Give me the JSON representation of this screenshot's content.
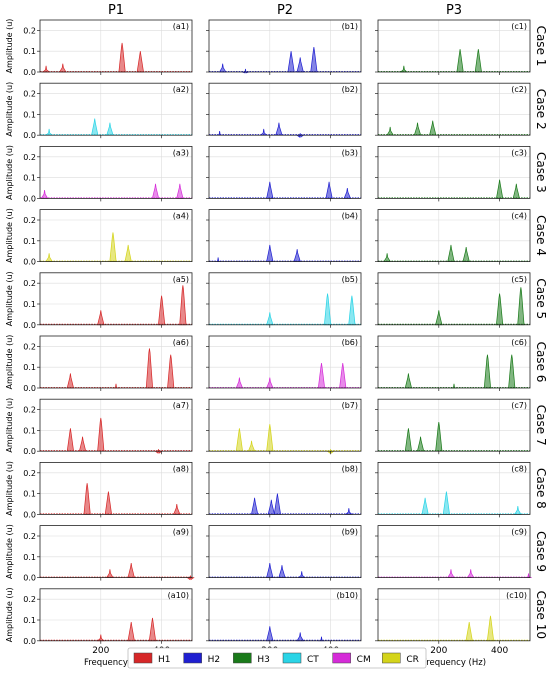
{
  "chart_data": {
    "type": "line",
    "columns": [
      "P1",
      "P2",
      "P3"
    ],
    "rows": [
      "Case 1",
      "Case 2",
      "Case 3",
      "Case 4",
      "Case 5",
      "Case 6",
      "Case 7",
      "Case 8",
      "Case 9",
      "Case 10"
    ],
    "ylabel": "Amplitude (u)",
    "xlabel": "Frequency (Hz)",
    "xlim": [
      0,
      500
    ],
    "ylim": [
      0,
      0.25
    ],
    "xticks": [
      200,
      400
    ],
    "yticks": [
      0.0,
      0.1,
      0.2
    ],
    "ytick_labels": [
      "0.0",
      "0.1",
      "0.2"
    ],
    "grid": true,
    "legend_position": "bottom",
    "legend": [
      {
        "label": "H1",
        "color": "#d62728"
      },
      {
        "label": "H2",
        "color": "#1f1fd0"
      },
      {
        "label": "H3",
        "color": "#1a7a1a"
      },
      {
        "label": "CT",
        "color": "#2ad4e6"
      },
      {
        "label": "CM",
        "color": "#d52bd8"
      },
      {
        "label": "CR",
        "color": "#d4d41a"
      }
    ],
    "panels": [
      [
        {
          "tag": "(a1)",
          "series": "H1",
          "peaks": [
            [
              20,
              0.03
            ],
            [
              75,
              0.04
            ],
            [
              270,
              0.14
            ],
            [
              330,
              0.1
            ]
          ]
        },
        {
          "tag": "(b1)",
          "series": "H2",
          "peaks": [
            [
              45,
              0.04
            ],
            [
              120,
              0.015
            ],
            [
              270,
              0.1
            ],
            [
              300,
              0.07
            ],
            [
              345,
              0.12
            ]
          ]
        },
        {
          "tag": "(c1)",
          "series": "H3",
          "peaks": [
            [
              85,
              0.03
            ],
            [
              270,
              0.11
            ],
            [
              330,
              0.11
            ]
          ]
        }
      ],
      [
        {
          "tag": "(a2)",
          "series": "CT",
          "peaks": [
            [
              30,
              0.03
            ],
            [
              180,
              0.08
            ],
            [
              230,
              0.06
            ]
          ]
        },
        {
          "tag": "(b2)",
          "series": "H2",
          "peaks": [
            [
              35,
              0.02
            ],
            [
              180,
              0.03
            ],
            [
              230,
              0.06
            ],
            [
              300,
              0.01
            ]
          ]
        },
        {
          "tag": "(c2)",
          "series": "H3",
          "peaks": [
            [
              40,
              0.04
            ],
            [
              130,
              0.06
            ],
            [
              180,
              0.07
            ]
          ]
        }
      ],
      [
        {
          "tag": "(a3)",
          "series": "CM",
          "peaks": [
            [
              15,
              0.04
            ],
            [
              380,
              0.07
            ],
            [
              460,
              0.07
            ]
          ]
        },
        {
          "tag": "(b3)",
          "series": "H2",
          "peaks": [
            [
              200,
              0.08
            ],
            [
              395,
              0.08
            ],
            [
              455,
              0.05
            ]
          ]
        },
        {
          "tag": "(c3)",
          "series": "H3",
          "peaks": [
            [
              400,
              0.09
            ],
            [
              455,
              0.07
            ]
          ]
        }
      ],
      [
        {
          "tag": "(a4)",
          "series": "CR",
          "peaks": [
            [
              30,
              0.04
            ],
            [
              240,
              0.14
            ],
            [
              290,
              0.08
            ]
          ]
        },
        {
          "tag": "(b4)",
          "series": "H2",
          "peaks": [
            [
              30,
              0.02
            ],
            [
              200,
              0.08
            ],
            [
              290,
              0.06
            ]
          ]
        },
        {
          "tag": "(c4)",
          "series": "H3",
          "peaks": [
            [
              30,
              0.04
            ],
            [
              240,
              0.08
            ],
            [
              290,
              0.07
            ]
          ]
        }
      ],
      [
        {
          "tag": "(a5)",
          "series": "H1",
          "peaks": [
            [
              200,
              0.07
            ],
            [
              400,
              0.14
            ],
            [
              470,
              0.19
            ]
          ]
        },
        {
          "tag": "(b5)",
          "series": "CT",
          "peaks": [
            [
              200,
              0.06
            ],
            [
              390,
              0.15
            ],
            [
              470,
              0.14
            ]
          ]
        },
        {
          "tag": "(c5)",
          "series": "H3",
          "peaks": [
            [
              200,
              0.07
            ],
            [
              400,
              0.15
            ],
            [
              470,
              0.18
            ]
          ]
        }
      ],
      [
        {
          "tag": "(a6)",
          "series": "H1",
          "peaks": [
            [
              100,
              0.07
            ],
            [
              250,
              0.02
            ],
            [
              360,
              0.19
            ],
            [
              430,
              0.16
            ]
          ]
        },
        {
          "tag": "(b6)",
          "series": "CM",
          "peaks": [
            [
              100,
              0.05
            ],
            [
              200,
              0.05
            ],
            [
              370,
              0.12
            ],
            [
              440,
              0.12
            ]
          ]
        },
        {
          "tag": "(c6)",
          "series": "H3",
          "peaks": [
            [
              100,
              0.07
            ],
            [
              250,
              0.02
            ],
            [
              360,
              0.16
            ],
            [
              440,
              0.16
            ]
          ]
        }
      ],
      [
        {
          "tag": "(a7)",
          "series": "H1",
          "peaks": [
            [
              100,
              0.11
            ],
            [
              140,
              0.07
            ],
            [
              200,
              0.16
            ],
            [
              390,
              0.01
            ]
          ]
        },
        {
          "tag": "(b7)",
          "series": "CR",
          "peaks": [
            [
              100,
              0.11
            ],
            [
              140,
              0.05
            ],
            [
              200,
              0.13
            ],
            [
              400,
              0.01
            ]
          ]
        },
        {
          "tag": "(c7)",
          "series": "H3",
          "peaks": [
            [
              100,
              0.11
            ],
            [
              140,
              0.07
            ],
            [
              200,
              0.14
            ]
          ]
        }
      ],
      [
        {
          "tag": "(a8)",
          "series": "H1",
          "peaks": [
            [
              155,
              0.15
            ],
            [
              225,
              0.11
            ],
            [
              450,
              0.05
            ]
          ]
        },
        {
          "tag": "(b8)",
          "series": "H2",
          "peaks": [
            [
              150,
              0.08
            ],
            [
              205,
              0.07
            ],
            [
              225,
              0.1
            ],
            [
              460,
              0.03
            ]
          ]
        },
        {
          "tag": "(c8)",
          "series": "CT",
          "peaks": [
            [
              155,
              0.08
            ],
            [
              225,
              0.11
            ],
            [
              460,
              0.04
            ]
          ]
        }
      ],
      [
        {
          "tag": "(a9)",
          "series": "H1",
          "peaks": [
            [
              230,
              0.04
            ],
            [
              300,
              0.07
            ],
            [
              495,
              0.01
            ]
          ]
        },
        {
          "tag": "(b9)",
          "series": "H2",
          "peaks": [
            [
              200,
              0.07
            ],
            [
              240,
              0.06
            ],
            [
              305,
              0.03
            ]
          ]
        },
        {
          "tag": "(c9)",
          "series": "CM",
          "peaks": [
            [
              240,
              0.04
            ],
            [
              305,
              0.04
            ],
            [
              495,
              0.02
            ]
          ]
        }
      ],
      [
        {
          "tag": "(a10)",
          "series": "H1",
          "peaks": [
            [
              200,
              0.03
            ],
            [
              300,
              0.09
            ],
            [
              370,
              0.11
            ]
          ]
        },
        {
          "tag": "(b10)",
          "series": "H2",
          "peaks": [
            [
              200,
              0.07
            ],
            [
              300,
              0.04
            ],
            [
              370,
              0.02
            ]
          ]
        },
        {
          "tag": "(c10)",
          "series": "CR",
          "peaks": [
            [
              300,
              0.09
            ],
            [
              370,
              0.12
            ]
          ]
        }
      ]
    ]
  }
}
